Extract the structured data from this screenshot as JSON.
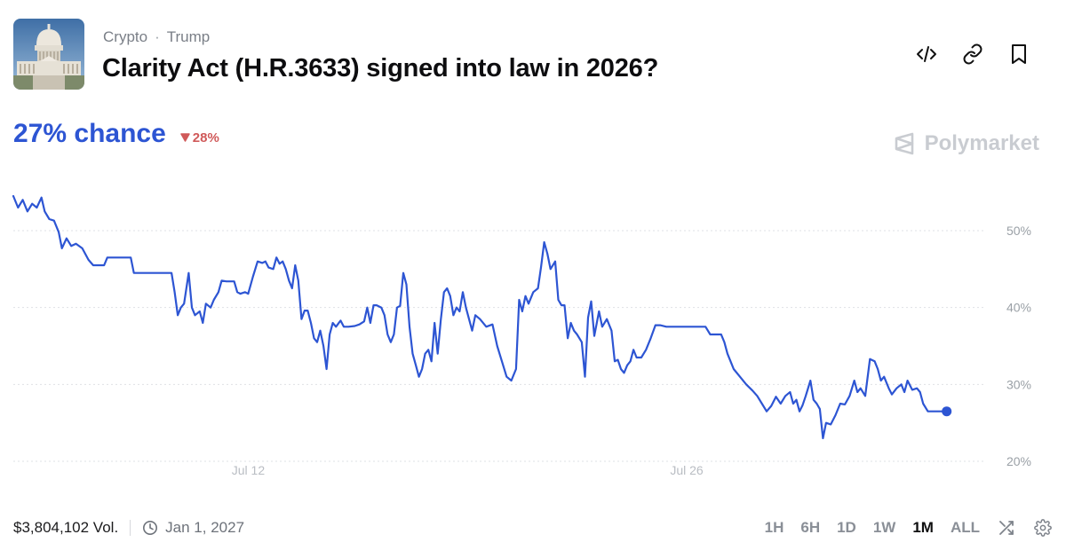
{
  "header": {
    "breadcrumb": [
      "Crypto",
      "Trump"
    ],
    "breadcrumb_separator": "·",
    "title": "Clarity Act (H.R.3633) signed into law in 2026?",
    "thumbnail_icon": "capitol-building-image"
  },
  "actions": {
    "icons": [
      "embed-code-icon",
      "link-icon",
      "bookmark-icon"
    ]
  },
  "odds": {
    "chance_text": "27% chance",
    "delta_text": "28%",
    "delta_direction": "down"
  },
  "brand": {
    "name": "Polymarket"
  },
  "chart_data": {
    "type": "line",
    "title": "",
    "xlabel": "",
    "ylabel": "",
    "x_ticks": [
      "Jul 12",
      "Jul 26"
    ],
    "y_ticks": [
      "20%",
      "30%",
      "40%",
      "50%"
    ],
    "ylim": [
      20,
      56
    ],
    "grid": "horizontal dotted",
    "color": "#2d55d3",
    "x_range_days": [
      0,
      31
    ],
    "x_tick_days": [
      7.5,
      21.5
    ],
    "series": [
      {
        "points": [
          [
            0,
            54.5
          ],
          [
            0.15,
            53
          ],
          [
            0.3,
            54
          ],
          [
            0.45,
            52.5
          ],
          [
            0.6,
            53.5
          ],
          [
            0.75,
            53
          ],
          [
            0.9,
            54.3
          ],
          [
            1.0,
            52.5
          ],
          [
            1.15,
            51.5
          ],
          [
            1.3,
            51.3
          ],
          [
            1.45,
            49.8
          ],
          [
            1.55,
            47.7
          ],
          [
            1.7,
            49
          ],
          [
            1.85,
            48
          ],
          [
            2.0,
            48.3
          ],
          [
            2.2,
            47.7
          ],
          [
            2.4,
            46.2
          ],
          [
            2.55,
            45.5
          ],
          [
            2.7,
            45.5
          ],
          [
            2.9,
            45.5
          ],
          [
            3.0,
            46.5
          ],
          [
            3.2,
            46.5
          ],
          [
            3.5,
            46.5
          ],
          [
            3.75,
            46.5
          ],
          [
            3.85,
            44.5
          ],
          [
            4.5,
            44.5
          ],
          [
            5.05,
            44.5
          ],
          [
            5.15,
            42
          ],
          [
            5.25,
            39
          ],
          [
            5.35,
            40
          ],
          [
            5.45,
            40.5
          ],
          [
            5.6,
            44.5
          ],
          [
            5.7,
            40
          ],
          [
            5.8,
            39
          ],
          [
            5.95,
            39.5
          ],
          [
            6.05,
            38
          ],
          [
            6.15,
            40.5
          ],
          [
            6.3,
            40
          ],
          [
            6.4,
            41
          ],
          [
            6.55,
            42
          ],
          [
            6.65,
            43.5
          ],
          [
            6.8,
            43.4
          ],
          [
            7.05,
            43.4
          ],
          [
            7.15,
            42
          ],
          [
            7.25,
            41.8
          ],
          [
            7.4,
            42
          ],
          [
            7.5,
            41.8
          ],
          [
            7.65,
            44
          ],
          [
            7.8,
            46
          ],
          [
            7.95,
            45.8
          ],
          [
            8.05,
            46
          ],
          [
            8.15,
            45.2
          ],
          [
            8.3,
            45
          ],
          [
            8.4,
            46.5
          ],
          [
            8.5,
            45.7
          ],
          [
            8.6,
            46
          ],
          [
            8.7,
            45
          ],
          [
            8.8,
            43.5
          ],
          [
            8.9,
            42.5
          ],
          [
            9.0,
            45.5
          ],
          [
            9.1,
            43.5
          ],
          [
            9.2,
            38.5
          ],
          [
            9.3,
            39.6
          ],
          [
            9.4,
            39.6
          ],
          [
            9.5,
            38
          ],
          [
            9.6,
            36
          ],
          [
            9.7,
            35.5
          ],
          [
            9.8,
            37
          ],
          [
            9.9,
            35
          ],
          [
            10.0,
            32
          ],
          [
            10.1,
            36.5
          ],
          [
            10.2,
            38
          ],
          [
            10.3,
            37.5
          ],
          [
            10.45,
            38.3
          ],
          [
            10.55,
            37.5
          ],
          [
            10.7,
            37.5
          ],
          [
            10.9,
            37.6
          ],
          [
            11.05,
            37.8
          ],
          [
            11.2,
            38.2
          ],
          [
            11.3,
            40
          ],
          [
            11.4,
            38
          ],
          [
            11.5,
            40.3
          ],
          [
            11.6,
            40.3
          ],
          [
            11.75,
            40
          ],
          [
            11.85,
            39
          ],
          [
            11.95,
            36.5
          ],
          [
            12.05,
            35.5
          ],
          [
            12.15,
            36.5
          ],
          [
            12.25,
            40
          ],
          [
            12.35,
            40.2
          ],
          [
            12.45,
            44.5
          ],
          [
            12.55,
            43
          ],
          [
            12.65,
            37.5
          ],
          [
            12.75,
            34
          ],
          [
            12.85,
            32.5
          ],
          [
            12.95,
            31
          ],
          [
            13.05,
            32
          ],
          [
            13.15,
            34
          ],
          [
            13.25,
            34.5
          ],
          [
            13.35,
            33
          ],
          [
            13.45,
            38
          ],
          [
            13.55,
            34
          ],
          [
            13.65,
            38.5
          ],
          [
            13.75,
            42
          ],
          [
            13.85,
            42.5
          ],
          [
            13.95,
            41.5
          ],
          [
            14.05,
            39
          ],
          [
            14.15,
            40
          ],
          [
            14.25,
            39.5
          ],
          [
            14.35,
            42
          ],
          [
            14.45,
            40
          ],
          [
            14.55,
            38.5
          ],
          [
            14.65,
            37
          ],
          [
            14.75,
            39
          ],
          [
            14.9,
            38.5
          ],
          [
            15.1,
            37.5
          ],
          [
            15.3,
            37.8
          ],
          [
            15.45,
            35
          ],
          [
            15.6,
            33
          ],
          [
            15.75,
            31
          ],
          [
            15.9,
            30.5
          ],
          [
            16.05,
            32
          ],
          [
            16.15,
            41
          ],
          [
            16.25,
            39.5
          ],
          [
            16.35,
            41.5
          ],
          [
            16.45,
            40.5
          ],
          [
            16.6,
            42
          ],
          [
            16.75,
            42.5
          ],
          [
            16.85,
            45.3
          ],
          [
            16.95,
            48.5
          ],
          [
            17.05,
            47
          ],
          [
            17.15,
            45
          ],
          [
            17.3,
            46
          ],
          [
            17.4,
            41
          ],
          [
            17.5,
            40.3
          ],
          [
            17.6,
            40.3
          ],
          [
            17.7,
            36
          ],
          [
            17.8,
            38
          ],
          [
            17.9,
            37
          ],
          [
            18.0,
            36.5
          ],
          [
            18.15,
            35.5
          ],
          [
            18.25,
            31
          ],
          [
            18.35,
            38.7
          ],
          [
            18.45,
            40.8
          ],
          [
            18.55,
            36.3
          ],
          [
            18.7,
            39.5
          ],
          [
            18.8,
            37.5
          ],
          [
            18.95,
            38.5
          ],
          [
            19.1,
            37
          ],
          [
            19.2,
            33
          ],
          [
            19.3,
            33.2
          ],
          [
            19.4,
            32
          ],
          [
            19.5,
            31.5
          ],
          [
            19.6,
            32.5
          ],
          [
            19.7,
            33
          ],
          [
            19.8,
            34.5
          ],
          [
            19.9,
            33.5
          ],
          [
            20.05,
            33.5
          ],
          [
            20.2,
            34.5
          ],
          [
            20.35,
            36
          ],
          [
            20.5,
            37.7
          ],
          [
            20.65,
            37.7
          ],
          [
            20.85,
            37.5
          ],
          [
            21.1,
            37.5
          ],
          [
            21.4,
            37.5
          ],
          [
            21.65,
            37.5
          ],
          [
            21.8,
            37.5
          ],
          [
            21.95,
            37.5
          ],
          [
            22.1,
            37.5
          ],
          [
            22.25,
            36.5
          ],
          [
            22.4,
            36.5
          ],
          [
            22.6,
            36.5
          ],
          [
            22.7,
            35.5
          ],
          [
            22.8,
            34
          ],
          [
            22.9,
            33
          ],
          [
            23.0,
            32
          ],
          [
            23.2,
            31
          ],
          [
            23.4,
            30
          ],
          [
            23.6,
            29.2
          ],
          [
            23.75,
            28.5
          ],
          [
            23.9,
            27.5
          ],
          [
            24.05,
            26.5
          ],
          [
            24.2,
            27.2
          ],
          [
            24.35,
            28.4
          ],
          [
            24.5,
            27.5
          ],
          [
            24.65,
            28.5
          ],
          [
            24.8,
            29
          ],
          [
            24.9,
            27.5
          ],
          [
            25.0,
            28
          ],
          [
            25.1,
            26.5
          ],
          [
            25.2,
            27.3
          ],
          [
            25.3,
            28.5
          ],
          [
            25.45,
            30.5
          ],
          [
            25.55,
            28
          ],
          [
            25.65,
            27.5
          ],
          [
            25.75,
            26.8
          ],
          [
            25.85,
            23
          ],
          [
            25.95,
            25
          ],
          [
            26.1,
            24.8
          ],
          [
            26.25,
            26
          ],
          [
            26.4,
            27.5
          ],
          [
            26.55,
            27.4
          ],
          [
            26.7,
            28.5
          ],
          [
            26.85,
            30.5
          ],
          [
            26.95,
            29
          ],
          [
            27.05,
            29.5
          ],
          [
            27.2,
            28.5
          ],
          [
            27.35,
            33.3
          ],
          [
            27.5,
            33
          ],
          [
            27.6,
            32
          ],
          [
            27.7,
            30.5
          ],
          [
            27.8,
            31
          ],
          [
            27.95,
            29.5
          ],
          [
            28.05,
            28.7
          ],
          [
            28.2,
            29.5
          ],
          [
            28.35,
            30
          ],
          [
            28.45,
            29
          ],
          [
            28.55,
            30.5
          ],
          [
            28.7,
            29.3
          ],
          [
            28.85,
            29.5
          ],
          [
            28.95,
            29
          ],
          [
            29.05,
            27.5
          ],
          [
            29.2,
            26.5
          ],
          [
            29.5,
            26.5
          ],
          [
            29.8,
            26.5
          ]
        ]
      }
    ]
  },
  "footer": {
    "volume": "$3,804,102 Vol.",
    "end_date": "Jan 1, 2027",
    "ranges": [
      "1H",
      "6H",
      "1D",
      "1W",
      "1M",
      "ALL"
    ],
    "active_range": "1M",
    "icons": [
      "shuffle-icon",
      "settings-gear-icon"
    ]
  }
}
